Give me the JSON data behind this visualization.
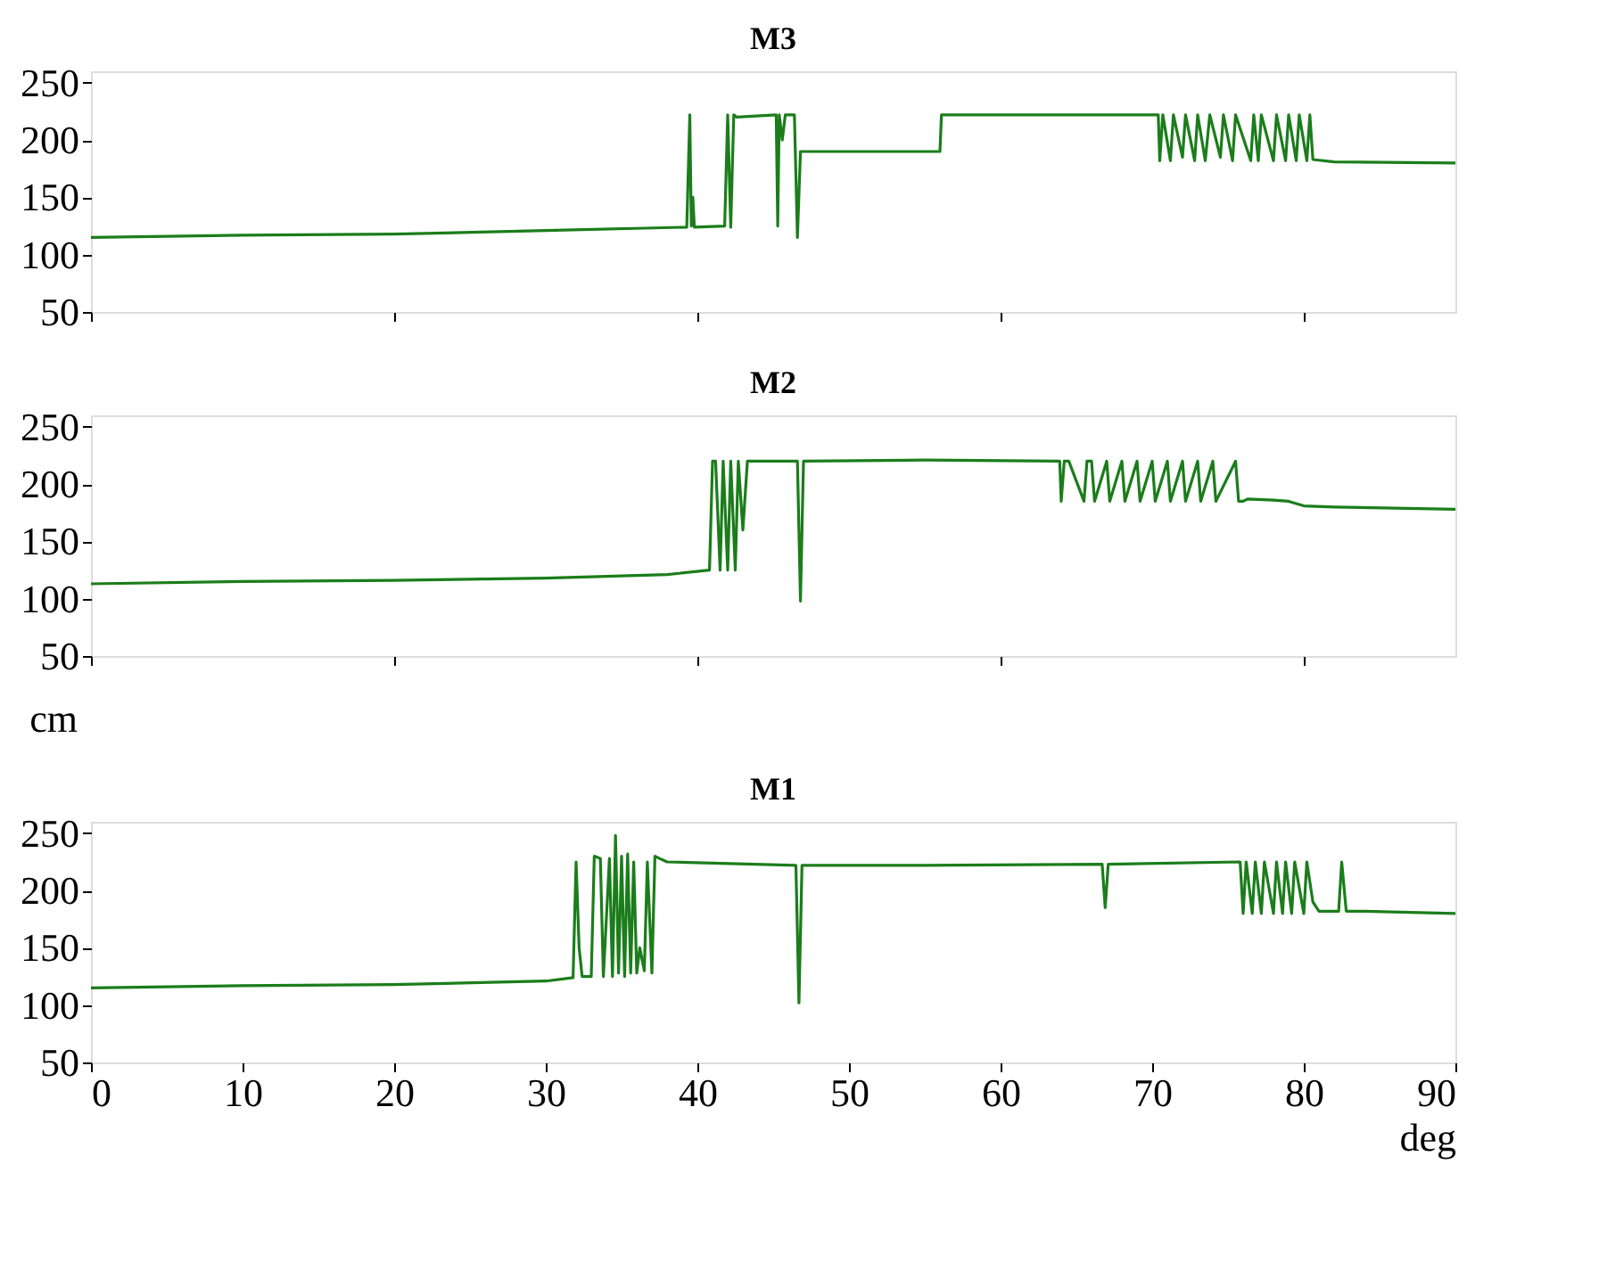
{
  "chart_data": [
    {
      "type": "line",
      "title": "M3",
      "xlim": [
        0,
        90
      ],
      "xticks": [
        0,
        20,
        40,
        60,
        80
      ],
      "ylim": [
        50,
        260
      ],
      "yticks": [
        50,
        100,
        150,
        200,
        250
      ],
      "tick_labels": "y",
      "grid": false,
      "series": [
        {
          "color": "#1b7d1b",
          "x": [
            0,
            10,
            20,
            30,
            39.3,
            39.5,
            39.6,
            39.7,
            39.8,
            41.8,
            42.0,
            42.2,
            42.4,
            42.6,
            45.2,
            45.3,
            45.4,
            45.6,
            45.8,
            46.4,
            46.6,
            46.8,
            56,
            56.1,
            70.4,
            70.5,
            70.7,
            71.2,
            71.4,
            72,
            72.2,
            72.8,
            73,
            73.5,
            73.8,
            74.5,
            74.7,
            75.3,
            75.5,
            76.5,
            76.7,
            77,
            77.2,
            78,
            78.2,
            78.8,
            79,
            79.5,
            79.7,
            80.2,
            80.4,
            80.6,
            82,
            90
          ],
          "values": [
            115,
            117,
            118,
            121,
            124,
            222,
            125,
            150,
            124,
            125,
            222,
            124,
            222,
            220,
            222,
            125,
            222,
            200,
            222,
            222,
            115,
            190,
            190,
            222,
            222,
            182,
            222,
            182,
            222,
            185,
            222,
            182,
            222,
            182,
            222,
            185,
            222,
            182,
            222,
            182,
            222,
            182,
            222,
            182,
            222,
            182,
            222,
            182,
            222,
            182,
            222,
            183,
            181,
            180
          ]
        }
      ]
    },
    {
      "type": "line",
      "title": "M2",
      "ylabel": "cm",
      "xlim": [
        0,
        90
      ],
      "xticks": [
        0,
        20,
        40,
        60,
        80
      ],
      "ylim": [
        50,
        260
      ],
      "yticks": [
        50,
        100,
        150,
        200,
        250
      ],
      "tick_labels": "y",
      "grid": false,
      "series": [
        {
          "color": "#1b7d1b",
          "x": [
            0,
            10,
            20,
            30,
            38,
            40.8,
            41.0,
            41.2,
            41.5,
            41.7,
            42.0,
            42.2,
            42.5,
            42.7,
            43.0,
            43.3,
            46.6,
            46.8,
            47.0,
            55,
            63.9,
            64.0,
            64.2,
            64.5,
            65.5,
            65.7,
            66.0,
            66.2,
            67,
            67.2,
            68,
            68.2,
            69,
            69.2,
            70,
            70.2,
            71,
            71.2,
            72,
            72.2,
            73,
            73.2,
            74,
            74.2,
            75.5,
            75.7,
            76,
            76.3,
            78,
            79,
            80,
            82,
            90
          ],
          "values": [
            113,
            115,
            116,
            118,
            121,
            125,
            220,
            220,
            125,
            220,
            125,
            220,
            125,
            220,
            160,
            220,
            220,
            98,
            220,
            221,
            220,
            185,
            220,
            220,
            185,
            220,
            220,
            185,
            220,
            185,
            220,
            185,
            220,
            185,
            220,
            185,
            220,
            185,
            220,
            185,
            220,
            185,
            220,
            185,
            220,
            185,
            185,
            187,
            186,
            185,
            181,
            180,
            178
          ]
        }
      ]
    },
    {
      "type": "line",
      "title": "M1",
      "xlabel": "deg",
      "xlim": [
        0,
        90
      ],
      "xticks": [
        0,
        10,
        20,
        30,
        40,
        50,
        60,
        70,
        80,
        90
      ],
      "ylim": [
        50,
        260
      ],
      "yticks": [
        50,
        100,
        150,
        200,
        250
      ],
      "grid": false,
      "series": [
        {
          "color": "#1b7d1b",
          "x": [
            0,
            10,
            20,
            30,
            31.8,
            32.0,
            32.2,
            32.4,
            33.0,
            33.2,
            33.6,
            33.8,
            34.2,
            34.4,
            34.6,
            34.8,
            35.0,
            35.2,
            35.4,
            35.6,
            35.8,
            36.0,
            36.2,
            36.5,
            36.7,
            37.0,
            37.2,
            37.5,
            38,
            46.5,
            46.7,
            46.9,
            55,
            66.7,
            66.9,
            67.1,
            75.8,
            76.0,
            76.2,
            76.6,
            76.8,
            77.2,
            77.4,
            78,
            78.2,
            78.6,
            78.8,
            79.2,
            79.4,
            80,
            80.2,
            80.6,
            81,
            82.3,
            82.5,
            82.8,
            84,
            90
          ],
          "values": [
            115,
            117,
            118,
            121,
            124,
            225,
            150,
            125,
            125,
            230,
            228,
            125,
            228,
            125,
            248,
            128,
            230,
            125,
            232,
            128,
            225,
            128,
            150,
            130,
            225,
            128,
            230,
            228,
            225,
            222,
            102,
            222,
            222,
            223,
            185,
            223,
            225,
            180,
            225,
            180,
            225,
            180,
            225,
            180,
            225,
            180,
            225,
            180,
            225,
            180,
            225,
            190,
            182,
            182,
            225,
            182,
            182,
            180
          ]
        }
      ]
    }
  ]
}
